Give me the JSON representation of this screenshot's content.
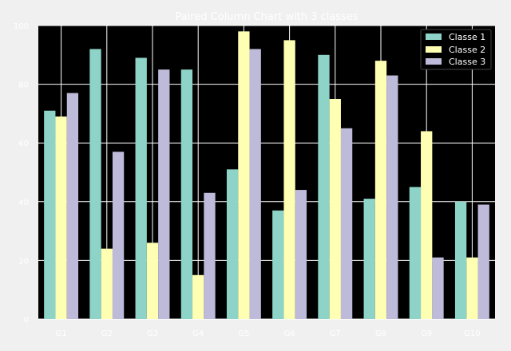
{
  "chart_data": {
    "type": "bar",
    "title": "Paired Column Chart with 3 classes",
    "xlabel": "",
    "ylabel": "",
    "categories": [
      "G1",
      "G2",
      "G3",
      "G4",
      "G5",
      "G6",
      "G7",
      "G8",
      "G9",
      "G10"
    ],
    "series": [
      {
        "name": "Classe 1",
        "color": "#8dd3c7",
        "values": [
          71,
          92,
          89,
          85,
          51,
          37,
          90,
          41,
          45,
          40
        ]
      },
      {
        "name": "Classe 2",
        "color": "#ffffb3",
        "values": [
          69,
          24,
          26,
          15,
          98,
          95,
          75,
          88,
          64,
          21
        ]
      },
      {
        "name": "Classe 3",
        "color": "#bebada",
        "values": [
          77,
          57,
          85,
          43,
          92,
          44,
          65,
          83,
          21,
          39
        ]
      }
    ],
    "ylim": [
      0,
      100
    ],
    "yticks": [
      0,
      20,
      40,
      60,
      80,
      100
    ],
    "grid": true,
    "legend_position": "top-right",
    "plot_background": "#000000",
    "figure_background": "#f0f0f0"
  }
}
